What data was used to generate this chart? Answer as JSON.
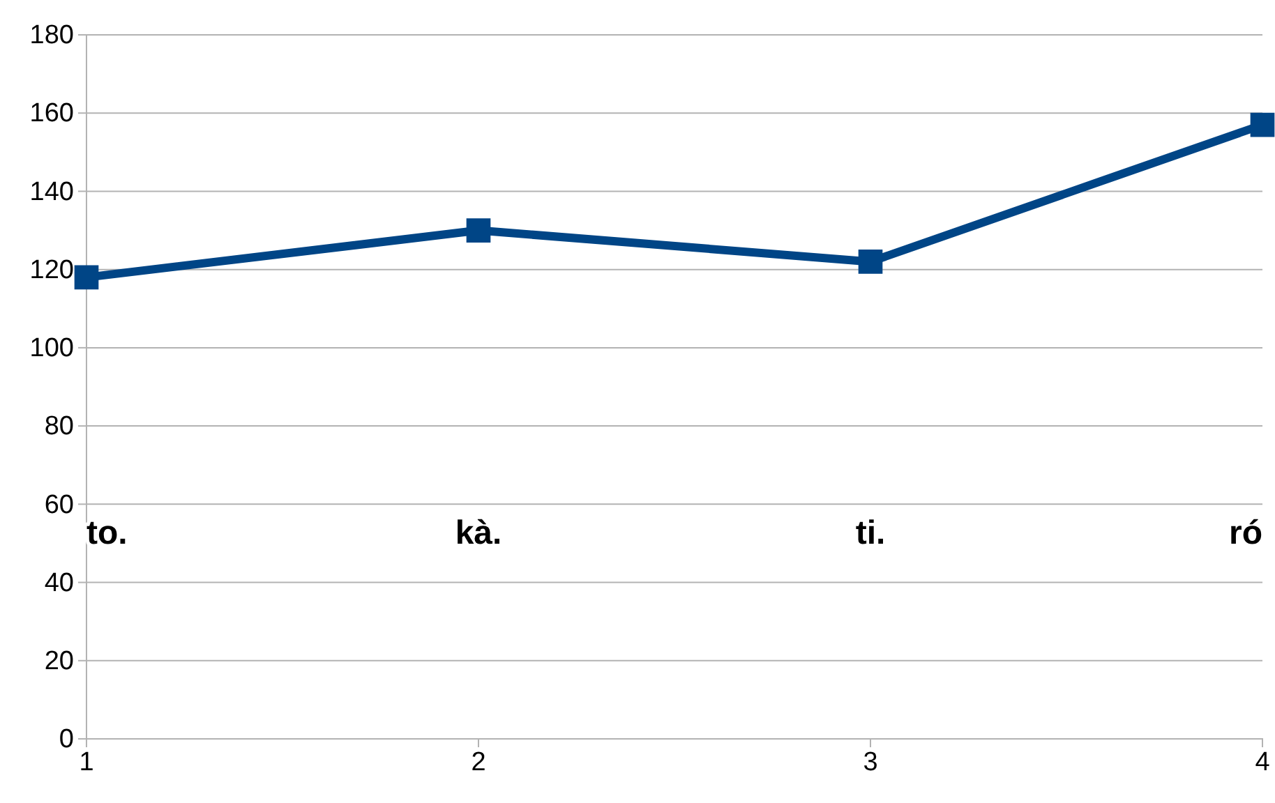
{
  "chart_data": {
    "type": "line",
    "x": [
      1,
      2,
      3,
      4
    ],
    "series": [
      {
        "color": "#004586",
        "values": [
          118,
          130,
          122,
          157
        ]
      }
    ],
    "xlim": [
      1,
      4
    ],
    "xticks": [
      1,
      2,
      3,
      4
    ],
    "ylim": [
      0,
      180
    ],
    "yticks": [
      0,
      20,
      40,
      60,
      80,
      100,
      120,
      140,
      160,
      180
    ],
    "grid": "y",
    "marker": "square",
    "line_style": "solid",
    "annotations": [
      "to.",
      "kà.",
      "ti.",
      "ró"
    ]
  }
}
